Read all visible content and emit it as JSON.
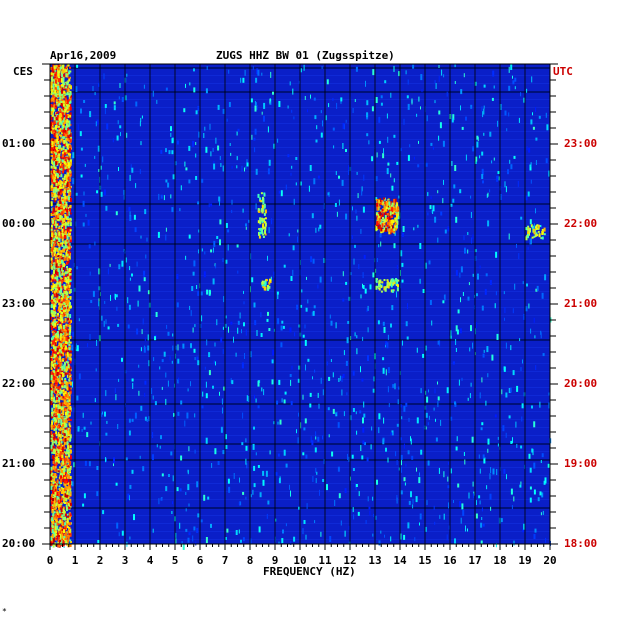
{
  "header": {
    "date": "Apr16,2009",
    "station": "ZUGS HHZ BW 01 (Zugsspitze)"
  },
  "left_axis": {
    "label": "CES",
    "ticks": [
      "01:00",
      "00:00",
      "23:00",
      "22:00",
      "21:00",
      "20:00"
    ]
  },
  "right_axis": {
    "label": "UTC",
    "ticks": [
      "23:00",
      "22:00",
      "21:00",
      "20:00",
      "19:00",
      "18:00"
    ]
  },
  "footer_mark": "*",
  "colors": {
    "plot_bg": "#0a1fc8",
    "right_text": "#cc0000"
  },
  "chart_data": {
    "type": "heatmap",
    "title": "ZUGS HHZ BW 01 (Zugsspitze)",
    "xlabel": "FREQUENCY (HZ)",
    "ylabel": "",
    "xlim": [
      0,
      20
    ],
    "x_ticks": [
      "0",
      "1",
      "2",
      "3",
      "4",
      "5",
      "6",
      "7",
      "8",
      "9",
      "10",
      "11",
      "12",
      "13",
      "14",
      "15",
      "16",
      "17",
      "18",
      "19",
      "20"
    ],
    "time_range_utc": [
      "18:00",
      "24:00"
    ],
    "colormap": "jet",
    "features": [
      {
        "freq": [
          0,
          0.8
        ],
        "time_utc": [
          "18:00",
          "24:00"
        ],
        "level": "high"
      },
      {
        "freq": [
          8.3,
          8.6
        ],
        "time_utc": [
          "21:50",
          "22:25"
        ],
        "level": "medium"
      },
      {
        "freq": [
          13.0,
          13.9
        ],
        "time_utc": [
          "21:55",
          "22:20"
        ],
        "level": "high"
      },
      {
        "freq": [
          13.0,
          13.9
        ],
        "time_utc": [
          "21:10",
          "21:20"
        ],
        "level": "medium"
      },
      {
        "freq": [
          8.4,
          8.8
        ],
        "time_utc": [
          "21:10",
          "21:20"
        ],
        "level": "medium"
      },
      {
        "freq": [
          19.0,
          19.8
        ],
        "time_utc": [
          "21:50",
          "22:00"
        ],
        "level": "medium"
      }
    ]
  }
}
